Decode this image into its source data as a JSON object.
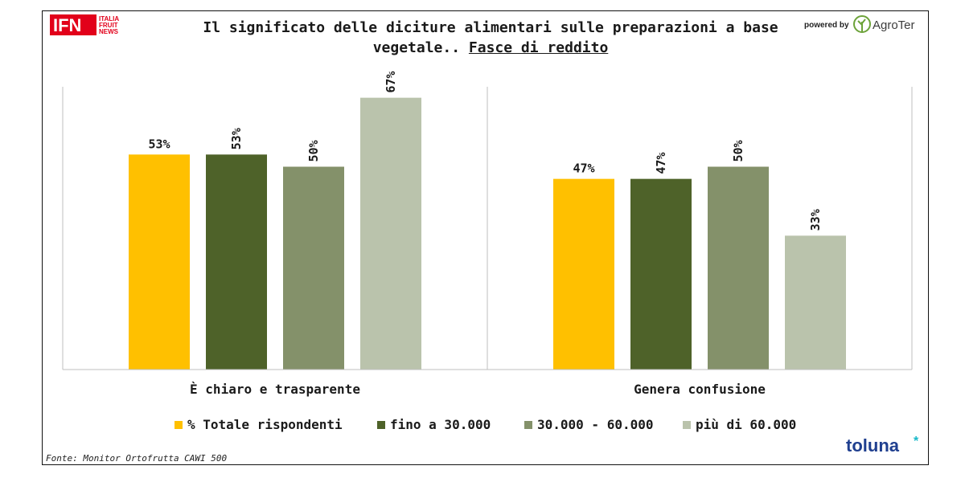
{
  "header": {
    "title_line1": "Il significato delle diciture alimentari sulle preparazioni a base",
    "title_line2_prefix": "vegetale.. ",
    "title_line2_underlined": "Fasce di reddito",
    "powered_by": "powered by"
  },
  "logos": {
    "ifn_text": "IFN",
    "ifn_sub": [
      "ITALIA",
      "FRUIT",
      "NEWS"
    ],
    "agroter_text": "AgroTer",
    "toluna_text": "toluna"
  },
  "source": "Fonte: Monitor Ortofrutta CAWI 500",
  "colors": {
    "totale": "#FFC000",
    "fino_30000": "#4E6229",
    "30000_60000": "#84916A",
    "oltre_60000": "#BAC3AC"
  },
  "chart_data": {
    "type": "bar",
    "categories": [
      "È chiaro e trasparente",
      "Genera confusione"
    ],
    "series": [
      {
        "name": "% Totale rispondenti",
        "values": [
          53,
          47
        ],
        "labels": [
          "53%",
          "47%"
        ],
        "color": "#FFC000"
      },
      {
        "name": "fino a 30.000",
        "values": [
          53,
          47
        ],
        "labels": [
          "53%",
          "47%"
        ],
        "color": "#4E6229"
      },
      {
        "name": "30.000 - 60.000",
        "values": [
          50,
          50
        ],
        "labels": [
          "50%",
          "50%"
        ],
        "color": "#84916A"
      },
      {
        "name": "più di 60.000",
        "values": [
          67,
          33
        ],
        "labels": [
          "67%",
          "33%"
        ],
        "color": "#BAC3AC"
      }
    ],
    "ylim": [
      0,
      75
    ],
    "grid": false,
    "legend": "bottom"
  }
}
